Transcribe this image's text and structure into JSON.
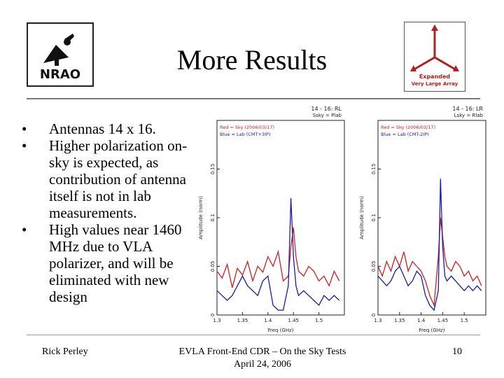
{
  "slide": {
    "title": "More Results",
    "bullets": [
      "Antennas 14 x 16.",
      "Higher polarization on-sky is expected, as contribution of antenna itself is not in lab measurements.",
      "High values near 1460 MHz due to VLA polarizer, and will be eliminated with new design"
    ],
    "bullet_symbol": "•",
    "footer": {
      "author": "Rick Perley",
      "event_line1": "EVLA Front-End CDR – On the Sky Tests",
      "event_line2": "April 24, 2006",
      "page_number": "10"
    }
  },
  "logos": {
    "nrao_text": "NRAO",
    "evla_text_1": "Expanded",
    "evla_text_2": "Very Large Array"
  },
  "colors": {
    "sky_series": "#cc1f1f",
    "lab_series": "#1a1aa6",
    "evla_brand": "#b02020"
  },
  "chart_data": [
    {
      "type": "line",
      "title": "14 - 16: RL",
      "subtitle": "Ssky = Plab",
      "xlabel": "Freq (GHz)",
      "ylabel": "Amplitude (norm)",
      "xlim": [
        1.3,
        1.55
      ],
      "ylim": [
        0,
        0.2
      ],
      "x_ticks": [
        "1.3",
        "1.35",
        "1.4",
        "1.45",
        "1.5"
      ],
      "y_ticks": [
        "0",
        "0.05",
        "0.1",
        "0.15"
      ],
      "legend": "top-left",
      "series": [
        {
          "name": "Red = Sky (2006/03/17)",
          "color": "#cc1f1f",
          "x": [
            1.3,
            1.31,
            1.32,
            1.33,
            1.34,
            1.35,
            1.36,
            1.37,
            1.38,
            1.39,
            1.4,
            1.41,
            1.42,
            1.43,
            1.44,
            1.445,
            1.45,
            1.455,
            1.46,
            1.47,
            1.48,
            1.49,
            1.5,
            1.51,
            1.52,
            1.53,
            1.54
          ],
          "y": [
            0.045,
            0.038,
            0.052,
            0.028,
            0.048,
            0.041,
            0.055,
            0.035,
            0.05,
            0.044,
            0.06,
            0.05,
            0.065,
            0.035,
            0.04,
            0.07,
            0.09,
            0.06,
            0.045,
            0.04,
            0.05,
            0.045,
            0.035,
            0.04,
            0.03,
            0.045,
            0.035
          ]
        },
        {
          "name": "Blue = Lab (CMT+3IP)",
          "color": "#1a1aa6",
          "x": [
            1.3,
            1.31,
            1.32,
            1.33,
            1.34,
            1.35,
            1.36,
            1.37,
            1.38,
            1.39,
            1.4,
            1.41,
            1.42,
            1.43,
            1.44,
            1.445,
            1.45,
            1.455,
            1.46,
            1.47,
            1.48,
            1.49,
            1.5,
            1.51,
            1.52,
            1.53,
            1.54
          ],
          "y": [
            0.025,
            0.02,
            0.015,
            0.02,
            0.03,
            0.04,
            0.03,
            0.025,
            0.02,
            0.035,
            0.04,
            0.01,
            0.005,
            0.005,
            0.03,
            0.12,
            0.06,
            0.03,
            0.02,
            0.025,
            0.02,
            0.015,
            0.01,
            0.02,
            0.015,
            0.02,
            0.015
          ]
        }
      ]
    },
    {
      "type": "line",
      "title": "14 - 16: LR",
      "subtitle": "Lsky = Rlab",
      "xlabel": "Freq (GHz)",
      "ylabel": "Amplitude (norm)",
      "xlim": [
        1.3,
        1.55
      ],
      "ylim": [
        0,
        0.2
      ],
      "x_ticks": [
        "1.3",
        "1.35",
        "1.4",
        "1.45",
        "1.5"
      ],
      "y_ticks": [
        "0",
        "0.05",
        "0.1",
        "0.15"
      ],
      "legend": "top-left",
      "series": [
        {
          "name": "Red = Sky (2006/03/17)",
          "color": "#cc1f1f",
          "x": [
            1.3,
            1.31,
            1.32,
            1.33,
            1.34,
            1.35,
            1.36,
            1.37,
            1.38,
            1.39,
            1.4,
            1.41,
            1.42,
            1.43,
            1.44,
            1.445,
            1.45,
            1.455,
            1.46,
            1.47,
            1.48,
            1.49,
            1.5,
            1.51,
            1.52,
            1.53,
            1.54
          ],
          "y": [
            0.05,
            0.04,
            0.055,
            0.045,
            0.06,
            0.05,
            0.065,
            0.045,
            0.055,
            0.05,
            0.045,
            0.035,
            0.02,
            0.01,
            0.06,
            0.1,
            0.08,
            0.06,
            0.05,
            0.045,
            0.055,
            0.05,
            0.04,
            0.045,
            0.035,
            0.04,
            0.03
          ]
        },
        {
          "name": "Blue = Lab (CMT-2IP)",
          "color": "#1a1aa6",
          "x": [
            1.3,
            1.31,
            1.32,
            1.33,
            1.34,
            1.35,
            1.36,
            1.37,
            1.38,
            1.39,
            1.4,
            1.41,
            1.42,
            1.43,
            1.44,
            1.445,
            1.45,
            1.455,
            1.46,
            1.47,
            1.48,
            1.49,
            1.5,
            1.51,
            1.52,
            1.53,
            1.54
          ],
          "y": [
            0.04,
            0.035,
            0.03,
            0.035,
            0.045,
            0.05,
            0.04,
            0.03,
            0.035,
            0.045,
            0.04,
            0.02,
            0.01,
            0.005,
            0.025,
            0.14,
            0.07,
            0.04,
            0.035,
            0.04,
            0.035,
            0.03,
            0.025,
            0.03,
            0.025,
            0.03,
            0.025
          ]
        }
      ]
    }
  ]
}
